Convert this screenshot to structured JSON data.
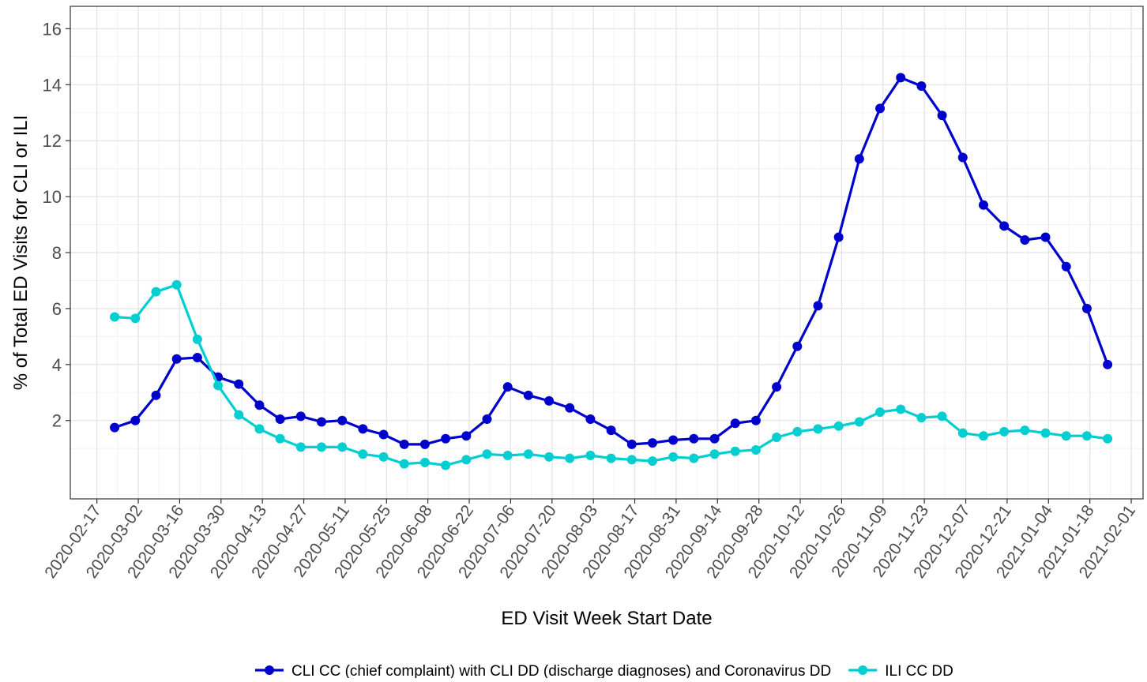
{
  "chart_data": {
    "type": "line",
    "xlabel": "ED Visit Week Start Date",
    "ylabel": "% of Total ED Visits for CLI or ILI",
    "ylim": [
      -0.8,
      16.8
    ],
    "y_ticks": [
      2,
      4,
      6,
      8,
      10,
      12,
      14,
      16
    ],
    "x_tick_labels": [
      "2020-02-17",
      "2020-03-02",
      "2020-03-16",
      "2020-03-30",
      "2020-04-13",
      "2020-04-27",
      "2020-05-11",
      "2020-05-25",
      "2020-06-08",
      "2020-06-22",
      "2020-07-06",
      "2020-07-20",
      "2020-08-03",
      "2020-08-17",
      "2020-08-31",
      "2020-09-14",
      "2020-09-28",
      "2020-10-12",
      "2020-10-26",
      "2020-11-09",
      "2020-11-23",
      "2020-12-07",
      "2020-12-21",
      "2021-01-04",
      "2021-01-18",
      "2021-02-01"
    ],
    "x": [
      "2020-02-23",
      "2020-03-01",
      "2020-03-08",
      "2020-03-15",
      "2020-03-22",
      "2020-03-29",
      "2020-04-05",
      "2020-04-12",
      "2020-04-19",
      "2020-04-26",
      "2020-05-03",
      "2020-05-10",
      "2020-05-17",
      "2020-05-24",
      "2020-05-31",
      "2020-06-07",
      "2020-06-14",
      "2020-06-21",
      "2020-06-28",
      "2020-07-05",
      "2020-07-12",
      "2020-07-19",
      "2020-07-26",
      "2020-08-02",
      "2020-08-09",
      "2020-08-16",
      "2020-08-23",
      "2020-08-30",
      "2020-09-06",
      "2020-09-13",
      "2020-09-20",
      "2020-09-27",
      "2020-10-04",
      "2020-10-11",
      "2020-10-18",
      "2020-10-25",
      "2020-11-01",
      "2020-11-08",
      "2020-11-15",
      "2020-11-22",
      "2020-11-29",
      "2020-12-06",
      "2020-12-13",
      "2020-12-20",
      "2020-12-27",
      "2021-01-03",
      "2021-01-10",
      "2021-01-17",
      "2021-01-24"
    ],
    "grid": true,
    "legend_position": "bottom",
    "series": [
      {
        "name": "CLI CC (chief complaint) with CLI DD (discharge diagnoses) and Coronavirus DD",
        "color": "#0000CD",
        "values": [
          1.75,
          2.0,
          2.9,
          4.2,
          4.25,
          3.55,
          3.3,
          2.55,
          2.05,
          2.15,
          1.95,
          2.0,
          1.7,
          1.5,
          1.15,
          1.15,
          1.35,
          1.45,
          2.05,
          3.2,
          2.9,
          2.7,
          2.45,
          2.05,
          1.65,
          1.15,
          1.2,
          1.3,
          1.35,
          1.35,
          1.9,
          2.0,
          3.2,
          4.65,
          6.1,
          8.55,
          11.35,
          13.15,
          14.25,
          13.95,
          12.9,
          11.4,
          9.7,
          8.95,
          8.45,
          8.55,
          7.5,
          6.0,
          4.0
        ]
      },
      {
        "name": "ILI CC DD",
        "color": "#00CED1",
        "values": [
          5.7,
          5.65,
          6.6,
          6.85,
          4.9,
          3.25,
          2.2,
          1.7,
          1.35,
          1.05,
          1.05,
          1.05,
          0.8,
          0.7,
          0.45,
          0.5,
          0.4,
          0.6,
          0.8,
          0.75,
          0.8,
          0.7,
          0.65,
          0.75,
          0.65,
          0.6,
          0.55,
          0.7,
          0.65,
          0.8,
          0.9,
          0.95,
          1.4,
          1.6,
          1.7,
          1.8,
          1.95,
          2.3,
          2.4,
          2.1,
          2.15,
          1.55,
          1.45,
          1.6,
          1.65,
          1.55,
          1.45,
          1.45,
          1.35
        ]
      }
    ]
  }
}
